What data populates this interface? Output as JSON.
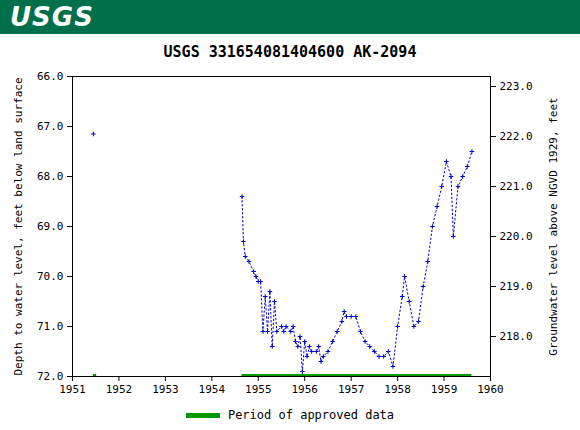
{
  "chart_data": {
    "type": "line",
    "logo": "USGS",
    "title": "USGS 331654081404600 AK-2094",
    "y_label": "Depth to water level, feet below land surface",
    "y2_label": "Groundwater level above NGVD 1929, feet",
    "color": "#0000cc",
    "marker": "plus",
    "line_style": "dotted",
    "grid": false,
    "x": [
      1951.45,
      1953.0,
      1954.65,
      1954.68,
      1954.72,
      1954.8,
      1954.9,
      1954.95,
      1955.0,
      1955.05,
      1955.1,
      1955.15,
      1955.2,
      1955.25,
      1955.3,
      1955.35,
      1955.4,
      1955.5,
      1955.55,
      1955.6,
      1955.7,
      1955.75,
      1955.8,
      1955.85,
      1955.9,
      1955.95,
      1956.0,
      1956.05,
      1956.1,
      1956.15,
      1956.25,
      1956.3,
      1956.35,
      1956.4,
      1956.5,
      1956.6,
      1956.7,
      1956.8,
      1956.85,
      1956.9,
      1957.0,
      1957.1,
      1957.2,
      1957.3,
      1957.4,
      1957.5,
      1957.6,
      1957.7,
      1957.8,
      1957.9,
      1958.0,
      1958.1,
      1958.15,
      1958.25,
      1958.35,
      1958.45,
      1958.55,
      1958.65,
      1958.75,
      1958.85,
      1958.95,
      1959.05,
      1959.15,
      1959.2,
      1959.3,
      1959.4,
      1959.5,
      1959.6
    ],
    "values": [
      67.15,
      null,
      68.4,
      69.3,
      69.6,
      69.7,
      69.9,
      70.0,
      70.1,
      70.1,
      71.1,
      70.4,
      71.1,
      70.3,
      71.4,
      70.5,
      71.1,
      71.0,
      71.1,
      71.0,
      71.1,
      71.0,
      71.3,
      71.4,
      71.2,
      71.9,
      71.3,
      71.6,
      71.4,
      71.5,
      71.5,
      71.4,
      71.7,
      71.6,
      71.5,
      71.3,
      71.1,
      70.9,
      70.7,
      70.8,
      70.8,
      70.8,
      71.1,
      71.3,
      71.4,
      71.5,
      71.6,
      71.6,
      71.5,
      71.8,
      71.0,
      70.4,
      70.0,
      70.5,
      71.0,
      70.9,
      70.2,
      69.7,
      69.0,
      68.6,
      68.2,
      67.7,
      68.0,
      69.2,
      68.2,
      68.0,
      67.8,
      67.5
    ],
    "approved_periods": {
      "label": "Period of approved data",
      "color": "#009900",
      "start": [
        1951.45,
        1954.65
      ],
      "end": [
        1951.52,
        1959.6
      ]
    },
    "xlim": [
      1951,
      1960
    ],
    "xticks": [
      1951,
      1952,
      1953,
      1954,
      1955,
      1956,
      1957,
      1958,
      1959,
      1960
    ],
    "ylim": [
      66,
      72
    ],
    "yticks": [
      {
        "value": 66,
        "label": "66.0"
      },
      {
        "value": 67,
        "label": "67.0"
      },
      {
        "value": 68,
        "label": "68.0"
      },
      {
        "value": 69,
        "label": "69.0"
      },
      {
        "value": 70,
        "label": "70.0"
      },
      {
        "value": 71,
        "label": "71.0"
      },
      {
        "value": 72,
        "label": "72.0"
      }
    ],
    "y2lim": [
      223.2,
      217.2
    ],
    "y2ticks": [
      {
        "value": 218,
        "label": "218.0"
      },
      {
        "value": 219,
        "label": "219.0"
      },
      {
        "value": 220,
        "label": "220.0"
      },
      {
        "value": 221,
        "label": "221.0"
      },
      {
        "value": 222,
        "label": "222.0"
      },
      {
        "value": 223,
        "label": "223.0"
      }
    ]
  }
}
